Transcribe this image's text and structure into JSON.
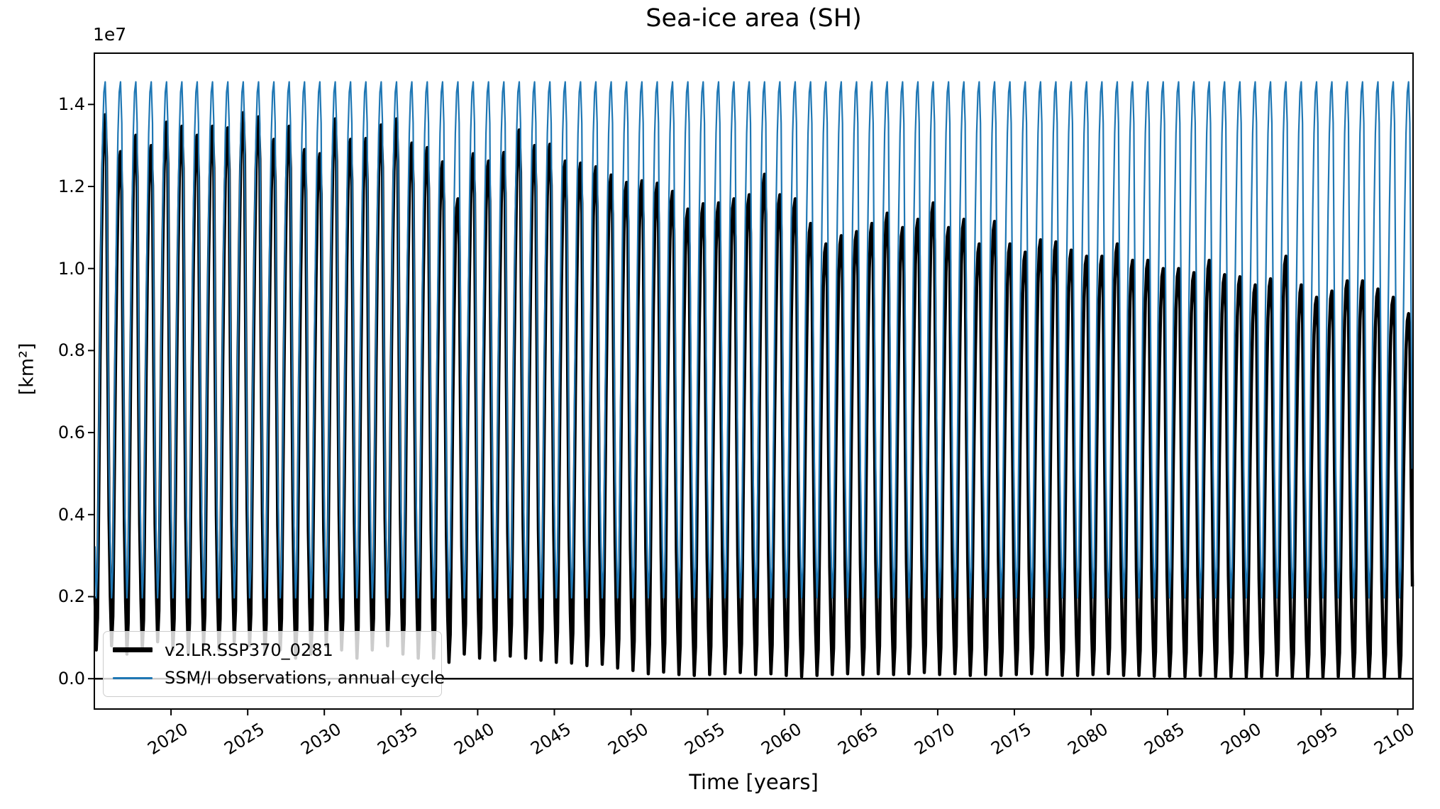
{
  "chart_data": {
    "type": "line",
    "title": "Sea-ice area (SH)",
    "xlabel": "Time [years]",
    "ylabel": "[km²]",
    "y_offset_label": "1e7",
    "units_note": "all y values are in 1e7 km²",
    "grid": false,
    "xlim": [
      2015,
      2101
    ],
    "ylim_1e7": [
      -0.074,
      1.525
    ],
    "x_tick_values": [
      2020,
      2025,
      2030,
      2035,
      2040,
      2045,
      2050,
      2055,
      2060,
      2065,
      2070,
      2075,
      2080,
      2085,
      2090,
      2095,
      2100
    ],
    "x_tick_labels": [
      "2020",
      "2025",
      "2030",
      "2035",
      "2040",
      "2045",
      "2050",
      "2055",
      "2060",
      "2065",
      "2070",
      "2075",
      "2080",
      "2085",
      "2090",
      "2095",
      "2100"
    ],
    "y_tick_values_1e7": [
      0.0,
      0.2,
      0.4,
      0.6,
      0.8,
      1.0,
      1.2,
      1.4
    ],
    "y_tick_labels": [
      "0.0",
      "0.2",
      "0.4",
      "0.6",
      "0.8",
      "1.0",
      "1.2",
      "1.4"
    ],
    "zero_line": {
      "value": 0,
      "color": "#000000",
      "linewidth": 2.5
    },
    "frequency": "monthly",
    "years_range": [
      2015,
      2100
    ],
    "seasonal_shape_monthly": [
      0.1,
      0.0,
      0.06,
      0.3,
      0.55,
      0.75,
      0.9,
      0.98,
      1.0,
      0.92,
      0.55,
      0.25
    ],
    "series": [
      {
        "name": "v2.LR.SSP370_0281",
        "color": "#000000",
        "linewidth": 4.5,
        "annual_peaks_1e7": [
          1.375,
          1.285,
          1.325,
          1.3,
          1.357,
          1.347,
          1.325,
          1.347,
          1.343,
          1.38,
          1.37,
          1.315,
          1.347,
          1.29,
          1.28,
          1.365,
          1.315,
          1.317,
          1.35,
          1.365,
          1.306,
          1.295,
          1.26,
          1.17,
          1.28,
          1.262,
          1.283,
          1.338,
          1.3,
          1.303,
          1.262,
          1.257,
          1.248,
          1.228,
          1.21,
          1.214,
          1.208,
          1.188,
          1.145,
          1.158,
          1.16,
          1.17,
          1.18,
          1.23,
          1.18,
          1.17,
          1.11,
          1.06,
          1.08,
          1.09,
          1.11,
          1.135,
          1.1,
          1.12,
          1.16,
          1.1,
          1.12,
          1.06,
          1.115,
          1.06,
          1.04,
          1.07,
          1.065,
          1.045,
          1.03,
          1.03,
          1.06,
          1.02,
          1.02,
          1.0,
          1.0,
          0.99,
          1.02,
          0.985,
          0.98,
          0.96,
          0.975,
          1.03,
          0.96,
          0.93,
          0.945,
          0.97,
          0.97,
          0.95,
          0.93,
          0.89
        ],
        "annual_troughs_1e7": [
          0.07,
          0.08,
          0.06,
          0.07,
          0.09,
          0.07,
          0.06,
          0.08,
          0.07,
          0.09,
          0.08,
          0.06,
          0.07,
          0.05,
          0.06,
          0.08,
          0.07,
          0.05,
          0.07,
          0.08,
          0.06,
          0.05,
          0.05,
          0.04,
          0.06,
          0.05,
          0.045,
          0.055,
          0.05,
          0.045,
          0.04,
          0.038,
          0.032,
          0.035,
          0.026,
          0.02,
          0.012,
          0.016,
          0.01,
          0.008,
          0.01,
          0.012,
          0.015,
          0.01,
          0.012,
          0.008,
          0.005,
          0.008,
          0.01,
          0.012,
          0.01,
          0.012,
          0.01,
          0.012,
          0.015,
          0.01,
          0.012,
          0.008,
          0.01,
          0.008,
          0.01,
          0.012,
          0.01,
          0.008,
          0.008,
          0.01,
          0.012,
          0.008,
          0.008,
          0.006,
          0.006,
          0.005,
          0.008,
          0.005,
          0.005,
          0.004,
          0.005,
          0.008,
          0.004,
          0.003,
          0.004,
          0.005,
          0.005,
          0.004,
          0.003,
          0.003
        ]
      },
      {
        "name": "SSM/I observations, annual cycle",
        "color": "#1f77b4",
        "linewidth": 2.2,
        "annual_peak_1e7": 1.455,
        "annual_trough_1e7": 0.197
      }
    ],
    "legend": {
      "location": "lower left"
    }
  }
}
